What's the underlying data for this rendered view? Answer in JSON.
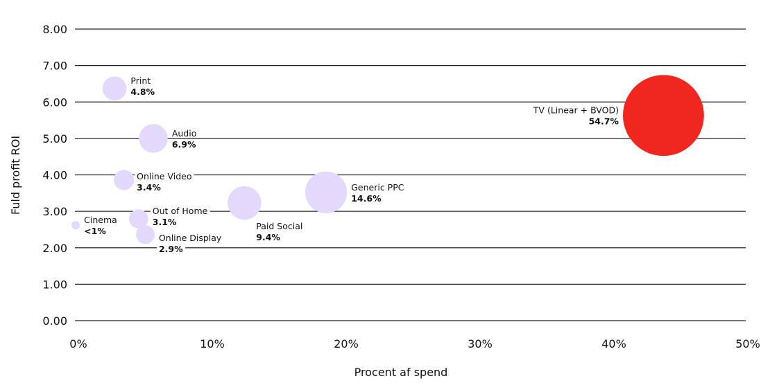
{
  "chart_data": {
    "type": "scatter",
    "subtype": "bubble",
    "title": "",
    "xlabel": "Procent af spend",
    "ylabel": "Fuld profit ROI",
    "xlim": [
      0,
      50
    ],
    "ylim": [
      0,
      8
    ],
    "x_ticks": [
      0,
      10,
      20,
      30,
      40,
      50
    ],
    "x_tick_labels": [
      "0%",
      "10%",
      "20%",
      "30%",
      "40%",
      "50%"
    ],
    "y_ticks": [
      0,
      1,
      2,
      3,
      4,
      5,
      6,
      7,
      8
    ],
    "y_tick_labels": [
      "0.00",
      "1.00",
      "2.00",
      "3.00",
      "4.00",
      "5.00",
      "6.00",
      "7.00",
      "8.00"
    ],
    "grid": "horizontal",
    "colors": {
      "default": "#e3d9fc",
      "highlight": "#f0271f",
      "grid": "#222222"
    },
    "points": [
      {
        "name": "Print",
        "share_label": "4.8%",
        "x": 2.7,
        "y": 6.37,
        "size": 4.8,
        "color": "#e3d9fc",
        "label_side": "right-top"
      },
      {
        "name": "Audio",
        "share_label": "6.9%",
        "x": 5.6,
        "y": 5.0,
        "size": 6.9,
        "color": "#e3d9fc",
        "label_side": "right"
      },
      {
        "name": "Online Video",
        "share_label": "3.4%",
        "x": 3.4,
        "y": 3.86,
        "size": 3.4,
        "color": "#e3d9fc",
        "label_side": "right-tight"
      },
      {
        "name": "Out of Home",
        "share_label": "3.1%",
        "x": 4.5,
        "y": 2.79,
        "size": 3.1,
        "color": "#e3d9fc",
        "label_side": "right-top"
      },
      {
        "name": "Online Display",
        "share_label": "2.9%",
        "x": 5.0,
        "y": 2.36,
        "size": 2.9,
        "color": "#e3d9fc",
        "label_side": "right-bottom"
      },
      {
        "name": "Cinema",
        "share_label": "<1%",
        "x": -0.2,
        "y": 2.62,
        "size": 0.5,
        "color": "#e3d9fc",
        "label_side": "right"
      },
      {
        "name": "Paid Social",
        "share_label": "9.4%",
        "x": 12.4,
        "y": 3.23,
        "size": 9.4,
        "color": "#e3d9fc",
        "label_side": "below-right"
      },
      {
        "name": "Generic PPC",
        "share_label": "14.6%",
        "x": 18.5,
        "y": 3.52,
        "size": 14.6,
        "color": "#e3d9fc",
        "label_side": "right"
      },
      {
        "name": "TV (Linear + BVOD)",
        "share_label": "54.7%",
        "x": 43.7,
        "y": 5.63,
        "size": 54.7,
        "color": "#f0271f",
        "label_side": "left"
      }
    ]
  }
}
